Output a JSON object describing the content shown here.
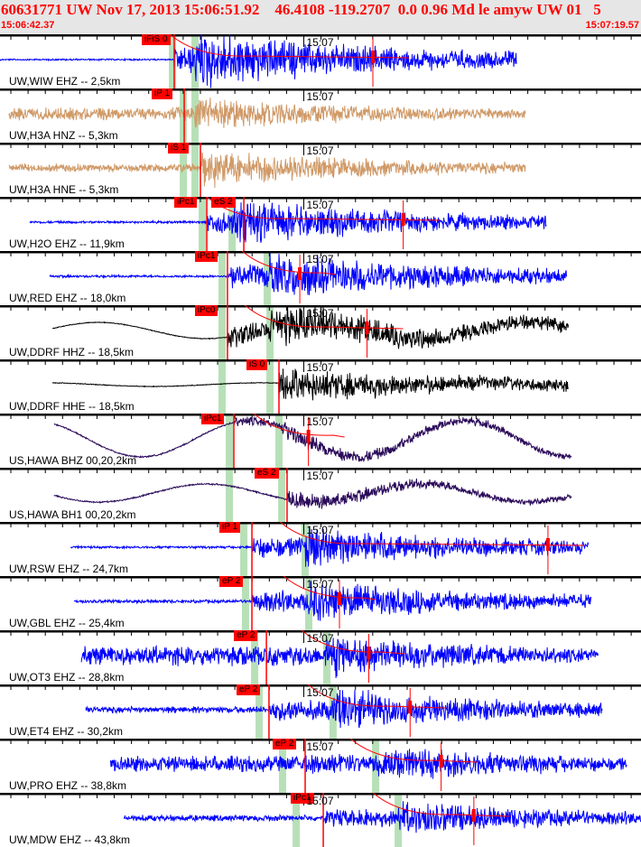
{
  "header": {
    "title": "60631771 UW Nov 17, 2013 15:06:51.92    46.4108 -119.2707  0.0 0.96 Md le amyw UW 01   5",
    "start_time": "15:06:42.37",
    "end_time": "15:07:19.57"
  },
  "window_seconds": 37.2,
  "minute_mark_seconds": 17.63,
  "minute_label": "15:07",
  "colors": {
    "pick": "#ff0000",
    "window": "#b8e0b8",
    "border": "#000000"
  },
  "traces": [
    {
      "label": "UW,WIW EHZ -- 2,5km",
      "color": "#0000ff",
      "start": 0,
      "end": 29.97,
      "pick": "iFiS 0",
      "pick_t": 10.11,
      "p_win": 9.8,
      "s_win": 11.11,
      "pre": 1,
      "post": 30,
      "lf": 0,
      "red_t": 21.64
    },
    {
      "label": "UW,H3A HNZ -- 5,3km",
      "color": "#d09a68",
      "start": 0.52,
      "end": 30.49,
      "pick": "iP 1",
      "pick_t": 10.69,
      "p_win": 10.43,
      "s_win": 11.11,
      "pre": 8,
      "post": 18,
      "lf": 0
    },
    {
      "label": "UW,H3A HNE -- 5,3km",
      "color": "#d09a68",
      "start": 0.52,
      "end": 30.49,
      "pick": "iS 1",
      "pick_t": 11.63,
      "p_win": 10.43,
      "s_win": 11.11,
      "pre": 5,
      "post": 20,
      "lf": 0
    },
    {
      "label": "UW,H2O EHZ -- 11,9km",
      "color": "#0000ff",
      "start": 1.73,
      "end": 31.7,
      "pick": "iPc1",
      "pick_t": 12.0,
      "pick2": "eS 2",
      "pick2_t": 14.15,
      "p_win": 11.53,
      "s_win": 13.26,
      "pre": 1.5,
      "post": 24,
      "lf": 0,
      "red_t": 23.4
    },
    {
      "label": "UW,RED EHZ -- 18,0km",
      "color": "#0000ff",
      "start": 2.88,
      "end": 32.9,
      "pick": "iPc1",
      "pick_t": 13.2,
      "p_win": 12.68,
      "s_win": 15.3,
      "pre": 1.5,
      "post": 25,
      "lf": 0,
      "red_t": 17.4
    },
    {
      "label": "UW,DDRF HHZ -- 18,5km",
      "color": "#000000",
      "start": 3.04,
      "end": 33.0,
      "pick": "iPc0",
      "pick_t": 13.2,
      "p_win": 12.68,
      "s_win": 15.46,
      "pre": 0.5,
      "post": 22,
      "lf": 9,
      "red_t": 21.3
    },
    {
      "label": "UW,DDRF HHE -- 18,5km",
      "color": "#000000",
      "start": 3.04,
      "end": 33.0,
      "pick": "iS 0",
      "pick_t": 16.19,
      "p_win": 12.68,
      "s_win": 15.46,
      "pre": 0.5,
      "post": 20,
      "lf": 2
    },
    {
      "label": "US,HAWA BHZ 00,20,2km",
      "color": "#2a0a5a",
      "start": 3.14,
      "end": 33.17,
      "pick": "iPc1",
      "pick_t": 13.57,
      "p_win": 13.1,
      "s_win": 15.98,
      "pre": 1,
      "post": 10,
      "lf": 20,
      "red_t": 17.9
    },
    {
      "label": "US,HAWA BH1 00,20,2km",
      "color": "#2a0a5a",
      "start": 3.14,
      "end": 33.17,
      "pick": "eS 2",
      "pick_t": 16.66,
      "p_win": 13.1,
      "s_win": 16.14,
      "pre": 1,
      "post": 10,
      "lf": 10
    },
    {
      "label": "UW,RSW EHZ -- 24,7km",
      "color": "#0000ff",
      "start": 4.09,
      "end": 34.16,
      "pick": "iP 1",
      "pick_t": 14.62,
      "p_win": 13.94,
      "s_win": 17.5,
      "pre": 1.5,
      "post": 22,
      "lf": 0,
      "red_t": 31.8
    },
    {
      "label": "UW,GBL EHZ -- 25,4km",
      "color": "#0000ff",
      "start": 4.3,
      "end": 34.3,
      "pick": "eP 2",
      "pick_t": 14.62,
      "p_win": 14.04,
      "s_win": 17.71,
      "pre": 2,
      "post": 22,
      "lf": 0,
      "red_t": 19.7
    },
    {
      "label": "UW,OT3 EHZ -- 28,8km",
      "color": "#0000ff",
      "start": 4.72,
      "end": 34.74,
      "pick": "eP 2",
      "pick_t": 15.46,
      "p_win": 14.57,
      "s_win": 18.76,
      "pre": 12,
      "post": 22,
      "lf": 0,
      "red_t": 21.4
    },
    {
      "label": "UW,ET4 EHZ -- 30,2km",
      "color": "#0000ff",
      "start": 4.98,
      "end": 34.95,
      "pick": "eP 2",
      "pick_t": 15.61,
      "p_win": 14.83,
      "s_win": 19.12,
      "pre": 4,
      "post": 22,
      "lf": 0,
      "red_t": 23.8
    },
    {
      "label": "UW,PRO EHZ -- 38,8km",
      "color": "#0000ff",
      "start": 6.39,
      "end": 36.36,
      "pick": "eP 2",
      "pick_t": 17.71,
      "p_win": 16.19,
      "s_win": 21.59,
      "pre": 10,
      "post": 20,
      "lf": 0,
      "red_t": 25.6
    },
    {
      "label": "UW,MDW EHZ -- 43,8km",
      "color": "#0000ff",
      "start": 7.18,
      "end": 37.2,
      "pick": "iPc1",
      "pick_t": 18.76,
      "p_win": 16.98,
      "s_win": 22.9,
      "pre": 4,
      "post": 18,
      "lf": 0,
      "red_t": 27.5
    }
  ]
}
